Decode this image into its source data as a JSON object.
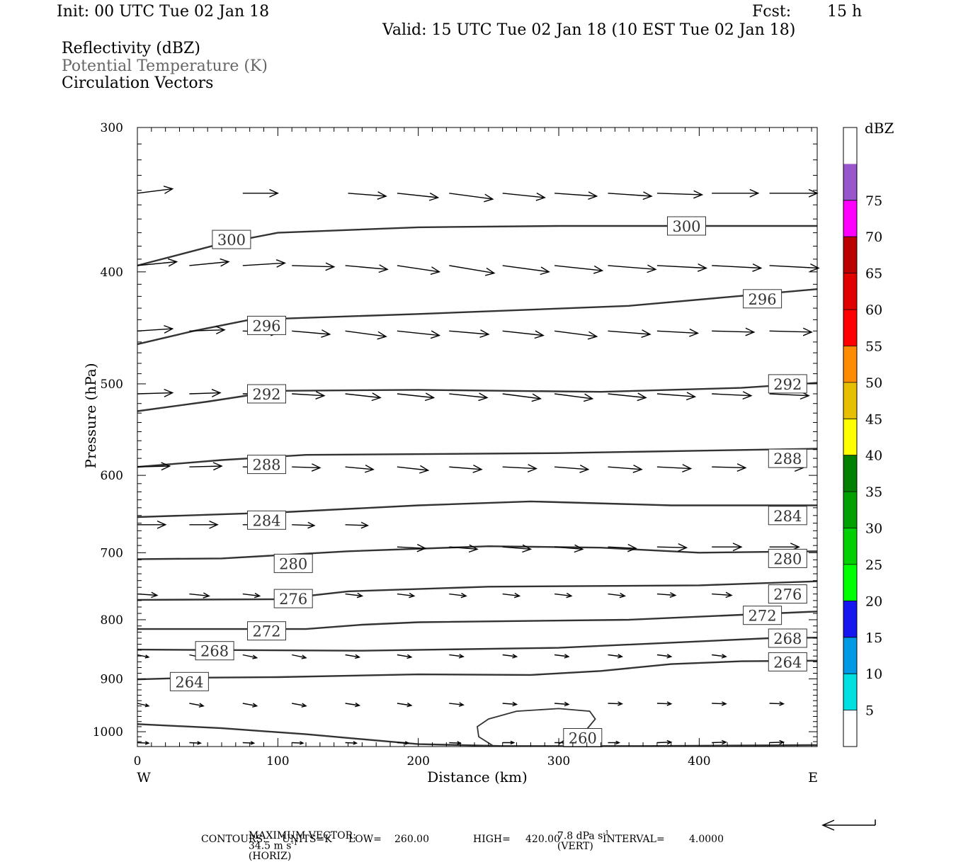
{
  "header": {
    "init": "Init: 00 UTC Tue 02 Jan 18",
    "fcst_label": "Fcst:",
    "fcst_value": "15 h",
    "valid": "Valid: 15 UTC Tue 02 Jan 18 (10 EST Tue 02 Jan 18)",
    "fields": [
      "Reflectivity (dBZ)",
      "Potential Temperature (K)",
      "Circulation Vectors"
    ]
  },
  "footer": {
    "max_vector_label": "MAXIMUM VECTOR:",
    "max_vector_horiz": "34.5 m s",
    "horiz_tag": "(HORIZ)",
    "max_vector_vert": "7.8 dPa s",
    "vert_tag": "(VERT)",
    "exp": "-1",
    "contours_label": "CONTOURS:",
    "units": "UNITS=K",
    "low": "LOW=",
    "low_value": "260.00",
    "high": "HIGH=",
    "high_value": "420.00",
    "interval": "INTERVAL=",
    "interval_value": "4.0000"
  },
  "chart_data": {
    "type": "line",
    "xlabel": "Distance (km)",
    "ylabel": "Pressure (hPa)",
    "xlim": [
      0,
      484
    ],
    "ylim": [
      1030,
      300
    ],
    "y_scale": "log",
    "x_ticks": [
      0,
      100,
      200,
      300,
      400
    ],
    "y_ticks": [
      300,
      400,
      500,
      600,
      700,
      800,
      900,
      1000
    ],
    "x_end_labels": {
      "left": "W",
      "right": "E"
    },
    "isentropes": [
      {
        "theta": 300,
        "labels": [
          [
            67,
            375
          ],
          [
            391,
            365
          ]
        ],
        "points": [
          [
            0,
            395
          ],
          [
            60,
            378
          ],
          [
            100,
            370
          ],
          [
            200,
            366
          ],
          [
            300,
            365
          ],
          [
            484,
            365
          ]
        ]
      },
      {
        "theta": 296,
        "labels": [
          [
            92,
            445
          ],
          [
            445,
            422
          ]
        ],
        "points": [
          [
            0,
            462
          ],
          [
            40,
            450
          ],
          [
            80,
            440
          ],
          [
            200,
            435
          ],
          [
            350,
            428
          ],
          [
            484,
            414
          ]
        ]
      },
      {
        "theta": 292,
        "labels": [
          [
            92,
            510
          ],
          [
            463,
            500
          ]
        ],
        "points": [
          [
            0,
            528
          ],
          [
            50,
            518
          ],
          [
            100,
            507
          ],
          [
            200,
            506
          ],
          [
            330,
            508
          ],
          [
            430,
            504
          ],
          [
            484,
            499
          ]
        ]
      },
      {
        "theta": 288,
        "labels": [
          [
            92,
            587
          ],
          [
            463,
            580
          ]
        ],
        "points": [
          [
            0,
            590
          ],
          [
            60,
            582
          ],
          [
            120,
            576
          ],
          [
            300,
            574
          ],
          [
            484,
            569
          ]
        ]
      },
      {
        "theta": 284,
        "labels": [
          [
            92,
            656
          ],
          [
            463,
            650
          ]
        ],
        "points": [
          [
            0,
            652
          ],
          [
            100,
            646
          ],
          [
            200,
            637
          ],
          [
            280,
            632
          ],
          [
            380,
            637
          ],
          [
            484,
            637
          ]
        ]
      },
      {
        "theta": 280,
        "labels": [
          [
            111,
            715
          ],
          [
            463,
            708
          ]
        ],
        "points": [
          [
            0,
            709
          ],
          [
            60,
            708
          ],
          [
            150,
            698
          ],
          [
            250,
            691
          ],
          [
            330,
            693
          ],
          [
            400,
            700
          ],
          [
            484,
            698
          ]
        ]
      },
      {
        "theta": 276,
        "labels": [
          [
            111,
            767
          ],
          [
            463,
            760
          ]
        ],
        "points": [
          [
            0,
            769
          ],
          [
            100,
            768
          ],
          [
            150,
            756
          ],
          [
            250,
            749
          ],
          [
            400,
            747
          ],
          [
            484,
            741
          ]
        ]
      },
      {
        "theta": 272,
        "labels": [
          [
            92,
            818
          ],
          [
            445,
            793
          ]
        ],
        "points": [
          [
            0,
            815
          ],
          [
            120,
            815
          ],
          [
            160,
            808
          ],
          [
            200,
            804
          ],
          [
            350,
            800
          ],
          [
            484,
            787
          ]
        ]
      },
      {
        "theta": 268,
        "labels": [
          [
            55,
            851
          ],
          [
            463,
            830
          ]
        ],
        "points": [
          [
            0,
            849
          ],
          [
            160,
            851
          ],
          [
            300,
            846
          ],
          [
            450,
            830
          ],
          [
            484,
            829
          ]
        ]
      },
      {
        "theta": 264,
        "labels": [
          [
            37,
            905
          ],
          [
            463,
            870
          ]
        ],
        "points": [
          [
            0,
            901
          ],
          [
            40,
            898
          ],
          [
            100,
            897
          ],
          [
            200,
            892
          ],
          [
            280,
            893
          ],
          [
            330,
            886
          ],
          [
            380,
            874
          ],
          [
            430,
            869
          ],
          [
            484,
            868
          ]
        ]
      },
      {
        "theta": 260,
        "labels": [
          [
            317,
            1012
          ]
        ],
        "points": [
          [
            0,
            985
          ],
          [
            60,
            993
          ],
          [
            120,
            1005
          ],
          [
            200,
            1025
          ],
          [
            260,
            1029
          ],
          [
            360,
            1029
          ],
          [
            484,
            1027
          ]
        ]
      }
    ],
    "closed_contour_260": [
      [
        253,
        1028
      ],
      [
        243,
        1010
      ],
      [
        242,
        990
      ],
      [
        250,
        975
      ],
      [
        270,
        960
      ],
      [
        300,
        955
      ],
      [
        322,
        960
      ],
      [
        326,
        975
      ],
      [
        320,
        995
      ],
      [
        305,
        1015
      ],
      [
        300,
        1025
      ]
    ],
    "vector_rows": [
      {
        "p": 342,
        "x": [
          0,
          75,
          150,
          185,
          222,
          260,
          297,
          335,
          370,
          409,
          450
        ],
        "dx": [
          25,
          25,
          27,
          29,
          31,
          30,
          30,
          31,
          32,
          33,
          34
        ],
        "dp": [
          -3,
          0,
          2,
          3,
          4,
          3,
          2,
          2,
          1,
          0,
          0
        ]
      },
      {
        "p": 395,
        "x": [
          0,
          37,
          75,
          110,
          148,
          185,
          222,
          260,
          297,
          335,
          370,
          409,
          450
        ],
        "dx": [
          28,
          28,
          30,
          30,
          30,
          30,
          32,
          33,
          34,
          34,
          35,
          35,
          35
        ],
        "dp": [
          -3,
          -3,
          -2,
          1,
          3,
          5,
          6,
          5,
          4,
          3,
          2,
          2,
          2
        ]
      },
      {
        "p": 450,
        "x": [
          0,
          37,
          75,
          110,
          148,
          185,
          222,
          260,
          297,
          335,
          370,
          409,
          450
        ],
        "dx": [
          25,
          25,
          26,
          27,
          29,
          30,
          28,
          29,
          30,
          30,
          29,
          30,
          30
        ],
        "dp": [
          -2,
          -1,
          1,
          3,
          5,
          4,
          3,
          4,
          5,
          3,
          2,
          1,
          1
        ]
      },
      {
        "p": 510,
        "x": [
          0,
          37,
          75,
          110,
          148,
          185,
          222,
          260,
          297,
          335,
          370,
          409,
          450
        ],
        "dx": [
          25,
          22,
          21,
          23,
          25,
          26,
          27,
          27,
          27,
          27,
          27,
          28,
          28
        ],
        "dp": [
          -1,
          -1,
          0,
          2,
          4,
          4,
          4,
          5,
          5,
          4,
          3,
          2,
          2
        ]
      },
      {
        "p": 590,
        "x": [
          0,
          37,
          75,
          110,
          148,
          185,
          222,
          260,
          297,
          335,
          370,
          409,
          450
        ],
        "dx": [
          23,
          23,
          20,
          20,
          20,
          22,
          23,
          24,
          24,
          24,
          24,
          24,
          24
        ],
        "dp": [
          -1,
          -1,
          0,
          1,
          3,
          4,
          3,
          2,
          3,
          3,
          2,
          1,
          1
        ]
      },
      {
        "p": 662,
        "x": [
          0,
          37,
          75,
          110,
          148
        ],
        "dx": [
          20,
          20,
          18,
          16,
          16
        ],
        "dp": [
          0,
          0,
          0,
          1,
          1
        ]
      },
      {
        "p": 692,
        "x": [
          185,
          222,
          260,
          297,
          335,
          370,
          409,
          450
        ],
        "dx": [
          20,
          20,
          20,
          20,
          20,
          21,
          21,
          21
        ],
        "dp": [
          2,
          3,
          3,
          3,
          2,
          1,
          0,
          0
        ]
      },
      {
        "p": 760,
        "x": [
          0,
          37,
          75,
          110,
          148,
          185,
          222,
          260,
          297,
          335,
          370,
          409,
          450
        ],
        "dx": [
          14,
          14,
          12,
          12,
          12,
          12,
          12,
          12,
          12,
          12,
          13,
          14,
          15
        ],
        "dp": [
          2,
          3,
          3,
          4,
          3,
          3,
          3,
          3,
          3,
          3,
          2,
          2,
          2
        ]
      },
      {
        "p": 858,
        "x": [
          0,
          37,
          75,
          110,
          148,
          185,
          222,
          260,
          297,
          335,
          370,
          409,
          450
        ],
        "dx": [
          8,
          10,
          10,
          10,
          10,
          10,
          10,
          10,
          10,
          10,
          10,
          10,
          10
        ],
        "dp": [
          4,
          5,
          5,
          5,
          4,
          4,
          3,
          3,
          3,
          3,
          3,
          3,
          2
        ]
      },
      {
        "p": 945,
        "x": [
          0,
          37,
          75,
          110,
          148,
          185,
          222,
          260,
          297,
          335,
          370,
          409,
          450
        ],
        "dx": [
          8,
          10,
          10,
          10,
          10,
          10,
          10,
          10,
          10,
          10,
          10,
          10,
          10
        ],
        "dp": [
          5,
          5,
          5,
          5,
          4,
          4,
          3,
          2,
          2,
          1,
          1,
          1,
          1
        ]
      },
      {
        "p": 1022,
        "x": [
          0,
          37,
          75,
          110,
          148,
          185,
          222,
          260,
          297,
          335,
          370,
          409,
          450
        ],
        "dx": [
          8,
          8,
          8,
          8,
          8,
          8,
          8,
          8,
          8,
          8,
          10,
          10,
          10
        ],
        "dp": [
          1,
          1,
          1,
          1,
          1,
          1,
          1,
          0,
          0,
          0,
          -1,
          -1,
          -1
        ]
      }
    ],
    "colorbar": {
      "title": "dBZ",
      "levels": [
        5,
        10,
        15,
        20,
        25,
        30,
        35,
        40,
        45,
        50,
        55,
        60,
        65,
        70,
        75
      ],
      "colors": [
        "#ffffff",
        "#00e0e0",
        "#0099e6",
        "#1616f0",
        "#00ff00",
        "#00d000",
        "#00a000",
        "#008000",
        "#ffff00",
        "#e6c000",
        "#ff8c00",
        "#ff0000",
        "#e00000",
        "#bb0000",
        "#ff00ff",
        "#9955cc",
        "#ffffff"
      ]
    }
  }
}
